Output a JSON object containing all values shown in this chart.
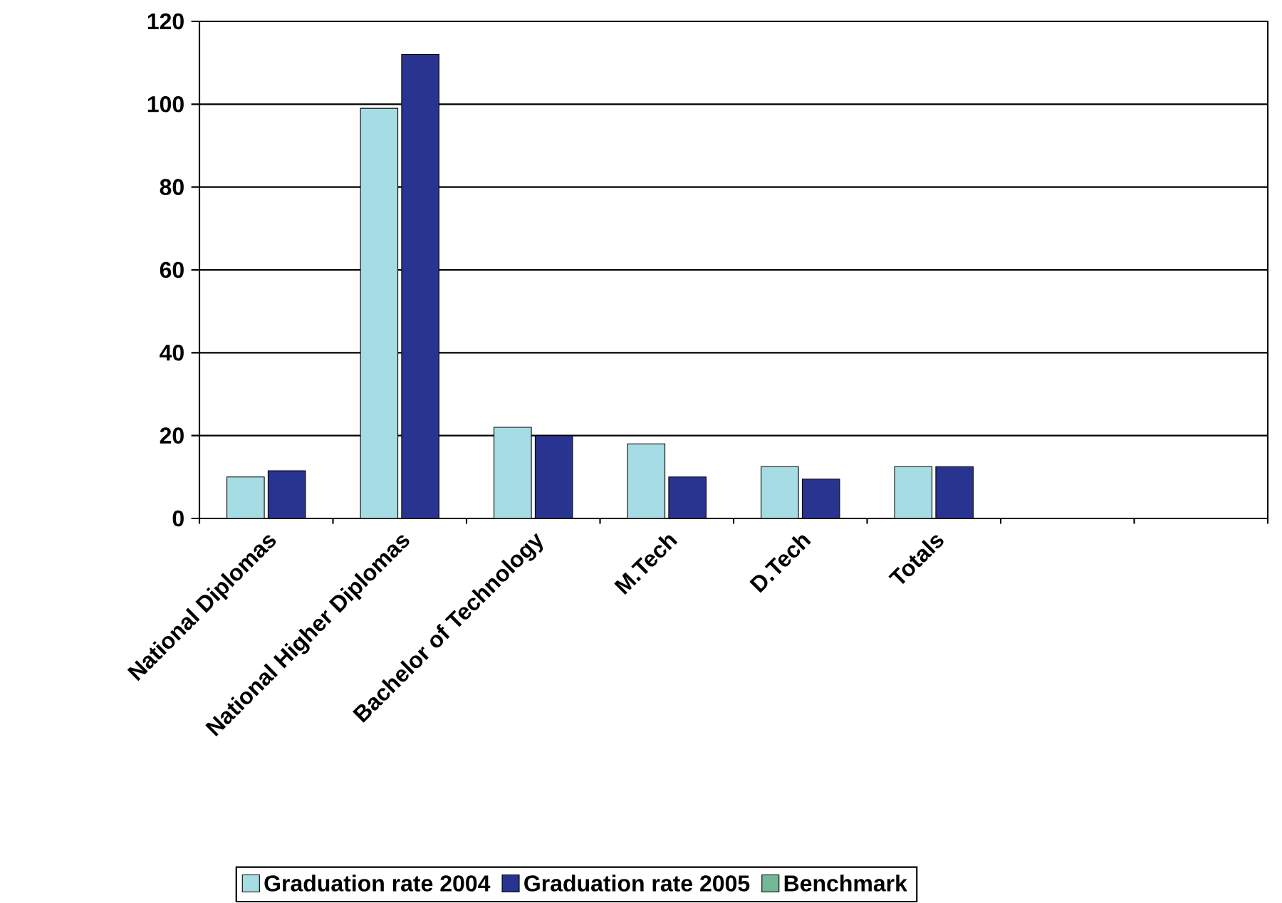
{
  "chart_data": {
    "type": "bar",
    "categories": [
      "National Diplomas",
      "National Higher Diplomas",
      "Bachelor of Technology",
      "M.Tech",
      "D.Tech",
      "Totals",
      null,
      null
    ],
    "series": [
      {
        "name": "Graduation rate 2004",
        "color": "#a6dce3",
        "values": [
          10,
          99,
          22,
          18,
          12.5,
          12.5,
          null,
          null
        ]
      },
      {
        "name": "Graduation rate 2005",
        "color": "#28348f",
        "values": [
          11.5,
          112,
          20,
          10,
          9.5,
          12.5,
          null,
          null
        ]
      },
      {
        "name": "Benchmark",
        "color": "#72b896",
        "values": [
          null,
          null,
          null,
          null,
          null,
          null,
          null,
          null
        ]
      }
    ],
    "ylim": [
      0,
      120
    ],
    "yticks": [
      0,
      20,
      40,
      60,
      80,
      100,
      120
    ],
    "grid": "y",
    "legend": "bottom"
  }
}
